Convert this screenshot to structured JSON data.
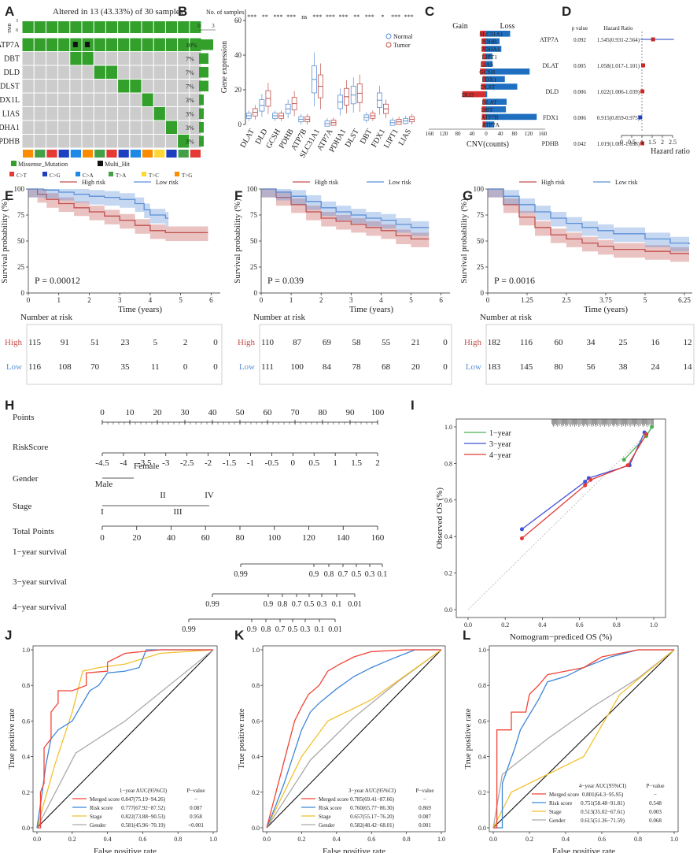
{
  "panel_labels": [
    "A",
    "B",
    "C",
    "D",
    "E",
    "F",
    "G",
    "H",
    "I",
    "J",
    "K",
    "L"
  ],
  "colors": {
    "green": "#33a02c",
    "red": "#d32f2f",
    "blue": "#1f6fc1",
    "gray": "#bbbbbb",
    "high": "#c0504d",
    "low": "#5b8fd6"
  },
  "chart_data": [
    {
      "id": "A",
      "type": "table",
      "title": "Altered in 13 (43.33%) of 30 samples",
      "tmb_label": "TMB",
      "tmb_ticks": [
        "3",
        "0"
      ],
      "bar_axis_title": "No. of samples",
      "bar_axis_ticks": [
        "0",
        "3"
      ],
      "genes": [
        "ATP7A",
        "DBT",
        "DLD",
        "DLST",
        "FDX1L",
        "LIAS",
        "PDHA1",
        "PDHB"
      ],
      "percents": [
        "10%",
        "7%",
        "7%",
        "7%",
        "3%",
        "3%",
        "3%",
        "3%"
      ],
      "counts": [
        3,
        2,
        2,
        2,
        1,
        1,
        1,
        1
      ],
      "legend_variant": [
        "Missense_Mutation",
        "Multi_Hit"
      ],
      "legend_snv": [
        "C>T",
        "C>G",
        "C>A",
        "T>A",
        "T>C",
        "T>G"
      ],
      "snv_colors": [
        "#e53935",
        "#1e3fbf",
        "#1e88e5",
        "#43a047",
        "#fdd835",
        "#fb8c00"
      ]
    },
    {
      "id": "B",
      "type": "box",
      "ylabel": "Gene expression",
      "yticks": [
        "0",
        "20",
        "40",
        "60"
      ],
      "ylim": [
        0,
        60
      ],
      "legend": [
        "Normal",
        "Tumor"
      ],
      "genes": [
        "DLAT",
        "DLD",
        "GCSH",
        "PDHB",
        "ATP7B",
        "SLC31A1",
        "ATP7A",
        "PDHA1",
        "DLST",
        "DBT",
        "FDX1",
        "LIPT1",
        "LIAS"
      ],
      "significance": [
        "***",
        "**",
        "***",
        "***",
        "ns",
        "***",
        "***",
        "***",
        "**",
        "***",
        "*",
        "***",
        "***"
      ],
      "normal_medians": [
        5,
        11,
        5,
        9,
        3,
        26,
        0.5,
        13,
        17,
        4,
        14,
        1,
        2
      ],
      "tumor_medians": [
        7,
        15,
        5,
        12,
        3,
        22,
        1,
        16,
        18,
        5,
        9,
        1.5,
        3
      ]
    },
    {
      "id": "C",
      "type": "bar",
      "title_gain": "Gain",
      "title_loss": "Loss",
      "xlabel": "CNV(counts)",
      "xticks": [
        "160",
        "120",
        "80",
        "40",
        "0",
        "40",
        "80",
        "120",
        "160"
      ],
      "genes": [
        "SLC31A1",
        "PDHB",
        "PDHA1",
        "LIPT1",
        "LIAS",
        "GCSH",
        "FDX1",
        "DLST",
        "DLD",
        "DLAT",
        "DBT",
        "ATP7B",
        "ATP7A"
      ],
      "gain": [
        15,
        10,
        10,
        8,
        12,
        15,
        8,
        12,
        65,
        8,
        10,
        10,
        8
      ],
      "loss": [
        70,
        40,
        45,
        20,
        20,
        125,
        55,
        90,
        5,
        60,
        58,
        145,
        25
      ]
    },
    {
      "id": "D",
      "type": "forest",
      "header_p": "p value",
      "header_hr": "Hazard  Ratio",
      "xlabel": "Hazard ratio",
      "xticks": [
        "0",
        "0.5",
        "1",
        "1.5",
        "2",
        "2.5"
      ],
      "genes": [
        "ATP7A",
        "DLAT",
        "DLD",
        "FDX1",
        "PDHB"
      ],
      "pvalues": [
        "0.092",
        "0.005",
        "0.006",
        "0.006",
        "0.042"
      ],
      "hr_text": [
        "1.545(0.931-2.564)",
        "1.058(1.017-1.101)",
        "1.022(1.006-1.039)",
        "0.915(0.859-0.975)",
        "1.019(1.001-1.038)"
      ],
      "hr": [
        1.545,
        1.058,
        1.022,
        0.915,
        1.019
      ],
      "lo": [
        0.931,
        1.017,
        1.006,
        0.859,
        1.001
      ],
      "hi": [
        2.564,
        1.101,
        1.039,
        0.975,
        1.038
      ]
    },
    {
      "id": "E",
      "type": "line",
      "legend": [
        "High risk",
        "Low risk"
      ],
      "ylabel": "Survival probability (%)",
      "xlabel": "Time (years)",
      "yticks": [
        "0",
        "25",
        "50",
        "75",
        "100"
      ],
      "xticks": [
        "0",
        "1",
        "2",
        "3",
        "4",
        "5",
        "6"
      ],
      "pvalue": "P = 0.00012",
      "risk_title": "Number at risk",
      "risk_labels": [
        "High",
        "Low"
      ],
      "risk_high": [
        "115",
        "91",
        "51",
        "23",
        "5",
        "2",
        "0"
      ],
      "risk_low": [
        "116",
        "108",
        "70",
        "35",
        "11",
        "0",
        "0"
      ],
      "high_x": [
        0,
        0.3,
        0.6,
        1,
        1.5,
        2,
        2.5,
        3,
        3.5,
        4,
        4.5,
        5,
        5.9
      ],
      "high_y": [
        100,
        95,
        90,
        86,
        82,
        78,
        74,
        70,
        65,
        60,
        58,
        58,
        58
      ],
      "low_x": [
        0,
        0.5,
        1,
        1.5,
        2,
        2.5,
        3,
        3.5,
        3.8,
        4,
        4.5,
        4.6
      ],
      "low_y": [
        100,
        99,
        97,
        95,
        93,
        92,
        90,
        86,
        80,
        75,
        72,
        72
      ]
    },
    {
      "id": "F",
      "type": "line",
      "legend": [
        "High risk",
        "Low risk"
      ],
      "ylabel": "Survival probability (%)",
      "xlabel": "Time (years)",
      "yticks": [
        "0",
        "25",
        "50",
        "75",
        "100"
      ],
      "xticks": [
        "0",
        "1",
        "2",
        "3",
        "4",
        "5",
        "6"
      ],
      "pvalue": "P = 0.039",
      "risk_title": "Number at risk",
      "risk_labels": [
        "High",
        "Low"
      ],
      "risk_high": [
        "110",
        "87",
        "69",
        "58",
        "55",
        "21",
        "0"
      ],
      "risk_low": [
        "111",
        "100",
        "84",
        "78",
        "68",
        "20",
        "0"
      ],
      "high_x": [
        0,
        0.5,
        1,
        1.5,
        2,
        2.5,
        3,
        3.5,
        4,
        4.5,
        5,
        5.6
      ],
      "high_y": [
        100,
        92,
        85,
        78,
        72,
        69,
        66,
        63,
        60,
        55,
        52,
        52
      ],
      "low_x": [
        0,
        0.5,
        1,
        1.5,
        2,
        2.5,
        3,
        3.5,
        4,
        4.5,
        5,
        5.6
      ],
      "low_y": [
        100,
        97,
        93,
        88,
        82,
        78,
        75,
        72,
        70,
        66,
        63,
        63
      ]
    },
    {
      "id": "G",
      "type": "line",
      "legend": [
        "High risk",
        "Low risk"
      ],
      "ylabel": "Survival probability (%)",
      "xlabel": "Time (years)",
      "yticks": [
        "0",
        "25",
        "50",
        "75",
        "100"
      ],
      "xticks": [
        "0",
        "1.25",
        "2.5",
        "3.75",
        "5",
        "6.25"
      ],
      "xtick_values": [
        0,
        1.25,
        2.5,
        3.75,
        5,
        6.25
      ],
      "xmax": 6.4,
      "xmax_axis": 6.5,
      "pvalue": "P = 0.0016",
      "risk_title": "Number at risk",
      "risk_labels": [
        "High",
        "Low"
      ],
      "risk_high": [
        "182",
        "116",
        "60",
        "34",
        "25",
        "16",
        "12"
      ],
      "risk_low": [
        "183",
        "145",
        "80",
        "56",
        "38",
        "24",
        "14"
      ],
      "high_x": [
        0,
        0.5,
        1,
        1.5,
        2,
        2.5,
        3,
        3.5,
        4,
        5,
        5.8,
        6.4
      ],
      "high_y": [
        100,
        85,
        73,
        63,
        56,
        52,
        48,
        45,
        42,
        40,
        38,
        38
      ],
      "low_x": [
        0,
        0.5,
        1,
        1.5,
        2,
        2.5,
        3,
        3.5,
        4,
        5,
        5.8,
        6.4
      ],
      "low_y": [
        100,
        93,
        85,
        78,
        72,
        67,
        63,
        60,
        57,
        52,
        48,
        47
      ]
    },
    {
      "id": "H",
      "type": "nomogram",
      "rows": [
        {
          "label": "Points",
          "ticks": [
            "0",
            "10",
            "20",
            "30",
            "40",
            "50",
            "60",
            "70",
            "80",
            "90",
            "100"
          ]
        },
        {
          "label": "RiskScore",
          "ticks": [
            "-4.5",
            "-4",
            "-3.5",
            "-3",
            "-2.5",
            "-2",
            "-1.5",
            "-1",
            "-0.5",
            "0",
            "0.5",
            "1",
            "1.5",
            "2"
          ]
        },
        {
          "label": "Gender",
          "ticks": [
            "Male",
            "Female"
          ]
        },
        {
          "label": "Stage",
          "ticks": [
            "I",
            "II",
            "III",
            "IV"
          ]
        },
        {
          "label": "Total Points",
          "ticks": [
            "0",
            "20",
            "40",
            "60",
            "80",
            "100",
            "120",
            "140",
            "160"
          ]
        },
        {
          "label": "1−year survival",
          "ticks": [
            "0.99",
            "0.9",
            "0.8",
            "0.7",
            "0.5",
            "0.3",
            "0.1"
          ]
        },
        {
          "label": "3−year survival",
          "ticks": [
            "0.99",
            "0.9",
            "0.8",
            "0.7",
            "0.5",
            "0.3",
            "0.1",
            "0.01"
          ]
        },
        {
          "label": "4−year survival",
          "ticks": [
            "0.99",
            "0.9",
            "0.8",
            "0.7",
            "0.5",
            "0.3",
            "0.1",
            "0.01"
          ]
        }
      ]
    },
    {
      "id": "I",
      "type": "line",
      "xlabel": "Nomogram−prediced OS (%)",
      "ylabel": "Observed OS (%)",
      "xticks": [
        "0.0",
        "0.2",
        "0.4",
        "0.6",
        "0.8",
        "1.0"
      ],
      "yticks": [
        "0.0",
        "0.2",
        "0.4",
        "0.6",
        "0.8",
        "1.0"
      ],
      "legend": [
        "1−year",
        "3−year",
        "4−year"
      ],
      "series": [
        {
          "name": "1−year",
          "x": [
            0.84,
            0.96,
            0.99
          ],
          "y": [
            0.82,
            0.95,
            1.0
          ]
        },
        {
          "name": "3−year",
          "x": [
            0.29,
            0.63,
            0.65,
            0.87,
            0.95
          ],
          "y": [
            0.44,
            0.7,
            0.72,
            0.79,
            0.97
          ]
        },
        {
          "name": "4−year",
          "x": [
            0.29,
            0.63,
            0.66,
            0.86,
            0.96
          ],
          "y": [
            0.39,
            0.68,
            0.71,
            0.79,
            0.96
          ]
        }
      ]
    },
    {
      "id": "J",
      "type": "line",
      "xlabel": "False positive rate",
      "ylabel": "True positive rate",
      "ticks": [
        "0.0",
        "0.2",
        "0.4",
        "0.6",
        "0.8",
        "1.0"
      ],
      "header": [
        "1−year  AUC(95%CI)",
        "P−value"
      ],
      "rows": [
        [
          "Merged score",
          "0.847(75.19−94.26)",
          "−"
        ],
        [
          "Risk score",
          "0.777(67.92−87.52)",
          "0.087"
        ],
        [
          "Stage",
          "0.822(73.88−90.53)",
          "0.958"
        ],
        [
          "Gender",
          "0.581(45.96−70.19)",
          "<0.001"
        ]
      ],
      "series": [
        {
          "name": "Merged score",
          "x": [
            0,
            0.02,
            0.02,
            0.04,
            0.04,
            0.08,
            0.08,
            0.12,
            0.12,
            0.2,
            0.28,
            0.28,
            0.4,
            0.4,
            0.5,
            0.7,
            1
          ],
          "y": [
            0,
            0,
            0.2,
            0.25,
            0.45,
            0.5,
            0.65,
            0.7,
            0.77,
            0.77,
            0.8,
            0.87,
            0.88,
            0.93,
            0.98,
            1,
            1
          ]
        },
        {
          "name": "Risk score",
          "x": [
            0,
            0.03,
            0.05,
            0.08,
            0.12,
            0.2,
            0.3,
            0.35,
            0.4,
            0.5,
            0.58,
            0.62,
            0.8,
            1
          ],
          "y": [
            0,
            0.2,
            0.35,
            0.5,
            0.55,
            0.6,
            0.77,
            0.8,
            0.87,
            0.88,
            0.9,
            1,
            1,
            1
          ],
          "x2": null
        },
        {
          "name": "Stage",
          "x": [
            0,
            0.1,
            0.2,
            0.26,
            0.35,
            0.5,
            0.7,
            1
          ],
          "y": [
            0,
            0.35,
            0.65,
            0.88,
            0.9,
            0.92,
            0.98,
            1
          ]
        },
        {
          "name": "Gender",
          "x": [
            0,
            0.22,
            0.5,
            0.75,
            1
          ],
          "y": [
            0,
            0.42,
            0.6,
            0.8,
            1
          ]
        }
      ]
    },
    {
      "id": "K",
      "type": "line",
      "xlabel": "False positive rate",
      "ylabel": "True positive rate",
      "ticks": [
        "0.0",
        "0.2",
        "0.4",
        "0.6",
        "0.8",
        "1.0"
      ],
      "header": [
        "3−year  AUC(95%CI)",
        "P−value"
      ],
      "rows": [
        [
          "Merged score",
          "0.785(69.41−87.66)",
          "−"
        ],
        [
          "Risk score",
          "0.760(65.77−86.30)",
          "0.869"
        ],
        [
          "Stage",
          "0.657(55.17−76.20)",
          "0.087"
        ],
        [
          "Gender",
          "0.582(48.42−68.01)",
          "0.001"
        ]
      ],
      "series": [
        {
          "name": "Merged score",
          "x": [
            0,
            0.04,
            0.08,
            0.12,
            0.16,
            0.2,
            0.24,
            0.3,
            0.35,
            0.42,
            0.5,
            0.6,
            0.8,
            1
          ],
          "y": [
            0,
            0.15,
            0.3,
            0.45,
            0.6,
            0.68,
            0.75,
            0.8,
            0.88,
            0.92,
            0.96,
            0.99,
            1,
            1
          ]
        },
        {
          "name": "Risk score",
          "x": [
            0,
            0.05,
            0.1,
            0.15,
            0.2,
            0.25,
            0.3,
            0.4,
            0.5,
            0.6,
            0.72,
            0.85,
            1
          ],
          "y": [
            0,
            0.12,
            0.25,
            0.4,
            0.55,
            0.65,
            0.7,
            0.78,
            0.85,
            0.9,
            0.95,
            1,
            1
          ]
        },
        {
          "name": "Stage",
          "x": [
            0,
            0.1,
            0.2,
            0.35,
            0.6,
            0.8,
            1
          ],
          "y": [
            0,
            0.2,
            0.4,
            0.6,
            0.72,
            0.86,
            1
          ]
        },
        {
          "name": "Gender",
          "x": [
            0,
            0.25,
            0.5,
            0.75,
            1
          ],
          "y": [
            0,
            0.38,
            0.62,
            0.82,
            1
          ]
        }
      ]
    },
    {
      "id": "L",
      "type": "line",
      "xlabel": "False positive rate",
      "ylabel": "True positive rate",
      "ticks": [
        "0.0",
        "0.2",
        "0.4",
        "0.6",
        "0.8",
        "1.0"
      ],
      "header": [
        "4−year  AUC(95%CI)",
        "P−value"
      ],
      "rows": [
        [
          "Merged score",
          "0.801(64.3−95.95)",
          "−"
        ],
        [
          "Risk score",
          "0.751(58.48−91.81)",
          "0.548"
        ],
        [
          "Stage",
          "0.513(35.02−67.61)",
          "0.003"
        ],
        [
          "Gender",
          "0.615(51.36−71.59)",
          "0.068"
        ]
      ],
      "series": [
        {
          "name": "Merged score",
          "x": [
            0,
            0.02,
            0.02,
            0.1,
            0.1,
            0.18,
            0.2,
            0.25,
            0.3,
            0.4,
            0.5,
            0.6,
            0.8,
            1
          ],
          "y": [
            0,
            0,
            0.55,
            0.55,
            0.65,
            0.65,
            0.75,
            0.8,
            0.86,
            0.88,
            0.9,
            0.96,
            1,
            1
          ]
        },
        {
          "name": "Risk score",
          "x": [
            0,
            0.05,
            0.05,
            0.12,
            0.15,
            0.25,
            0.3,
            0.4,
            0.5,
            0.65,
            0.8,
            1
          ],
          "y": [
            0,
            0,
            0.25,
            0.45,
            0.55,
            0.72,
            0.82,
            0.85,
            0.9,
            0.96,
            1,
            1
          ]
        },
        {
          "name": "Stage",
          "x": [
            0,
            0.1,
            0.3,
            0.5,
            0.7,
            1
          ],
          "y": [
            0,
            0.2,
            0.3,
            0.4,
            0.75,
            1
          ]
        },
        {
          "name": "Gender",
          "x": [
            0,
            0.05,
            0.3,
            0.55,
            0.8,
            1
          ],
          "y": [
            0,
            0.3,
            0.5,
            0.68,
            0.84,
            1
          ]
        }
      ]
    }
  ]
}
